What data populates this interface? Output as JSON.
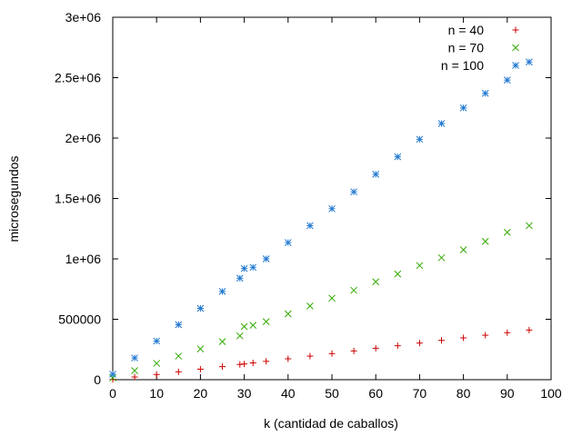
{
  "chart_data": {
    "type": "scatter",
    "title": "",
    "xlabel": "k (cantidad de caballos)",
    "ylabel": "microsegundos",
    "xlim": [
      0,
      100
    ],
    "ylim": [
      0,
      3000000
    ],
    "x_ticks": [
      0,
      10,
      20,
      30,
      40,
      50,
      60,
      70,
      80,
      90,
      100
    ],
    "x_tick_labels": [
      "0",
      "10",
      "20",
      "30",
      "40",
      "50",
      "60",
      "70",
      "80",
      "90",
      "100"
    ],
    "y_ticks": [
      0,
      500000,
      1000000,
      1500000,
      2000000,
      2500000,
      3000000
    ],
    "y_tick_labels": [
      "0",
      "500000",
      "1e+06",
      "1.5e+06",
      "2e+06",
      "2.5e+06",
      "3e+06"
    ],
    "grid": false,
    "legend_position": "top-right",
    "x": [
      0,
      5,
      10,
      15,
      20,
      25,
      29,
      30,
      32,
      35,
      40,
      45,
      50,
      55,
      60,
      65,
      70,
      75,
      80,
      85,
      90,
      95
    ],
    "series": [
      {
        "name": "n = 40",
        "marker": "+",
        "color": "#cc0000",
        "values": [
          2000,
          22000,
          43000,
          65000,
          87000,
          108000,
          126000,
          130000,
          139000,
          152000,
          173000,
          195000,
          216000,
          238000,
          260000,
          281000,
          303000,
          325000,
          346000,
          368000,
          389000,
          411000
        ]
      },
      {
        "name": "n = 70",
        "marker": "x",
        "color": "#33aa00",
        "values": [
          15000,
          75000,
          135000,
          195000,
          255000,
          315000,
          363000,
          440000,
          450000,
          480000,
          545000,
          610000,
          675000,
          740000,
          810000,
          875000,
          945000,
          1010000,
          1075000,
          1145000,
          1220000,
          1275000
        ]
      },
      {
        "name": "n = 100",
        "marker": "*",
        "color": "#1f77d0",
        "values": [
          45000,
          180000,
          320000,
          455000,
          590000,
          730000,
          840000,
          920000,
          930000,
          1000000,
          1135000,
          1275000,
          1415000,
          1555000,
          1700000,
          1845000,
          1990000,
          2120000,
          2250000,
          2370000,
          2480000,
          2630000
        ]
      }
    ]
  }
}
